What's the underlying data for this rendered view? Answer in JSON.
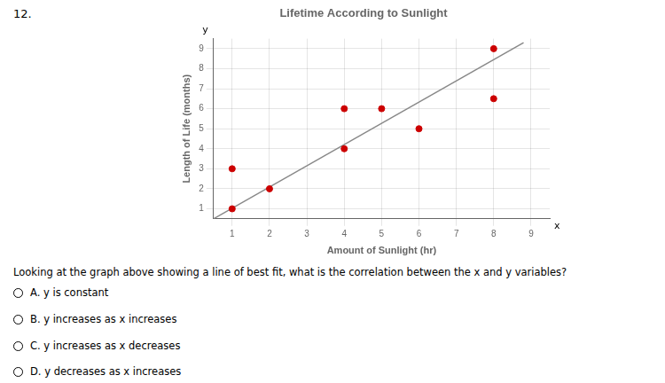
{
  "chart_data": {
    "type": "scatter",
    "title": "Lifetime According to Sunlight",
    "x_label": "Amount of Sunlight (hr)",
    "y_label": "Length of Life (months)",
    "series": [
      {
        "type": "line",
        "color": "#888888",
        "x": [
          0.5,
          8.8
        ],
        "values": [
          0.5,
          9.3
        ]
      },
      {
        "type": "scatter",
        "color": "#cc0000",
        "x": [
          1,
          1,
          2,
          4,
          4,
          5,
          6,
          8,
          8
        ],
        "values": [
          1,
          3,
          2,
          4,
          6,
          6,
          5,
          9,
          6.5
        ]
      }
    ],
    "xlim": [
      0.5,
      9.5
    ],
    "ylim": [
      0.5,
      9.5
    ],
    "xticks": [
      1,
      2,
      3,
      4,
      5,
      6,
      7,
      8,
      9
    ],
    "yticks": [
      1,
      2,
      3,
      4,
      5,
      6,
      7,
      8,
      9
    ],
    "grid": true,
    "annotations": [
      "12.",
      "y",
      "x",
      "Looking at the graph above showing a line of best fit, what is the correlation between the x and y variables?",
      "A. y is constant",
      "B. y increases as x increases",
      "C. y increases as x decreases",
      "D. y decreases as x increases"
    ]
  }
}
